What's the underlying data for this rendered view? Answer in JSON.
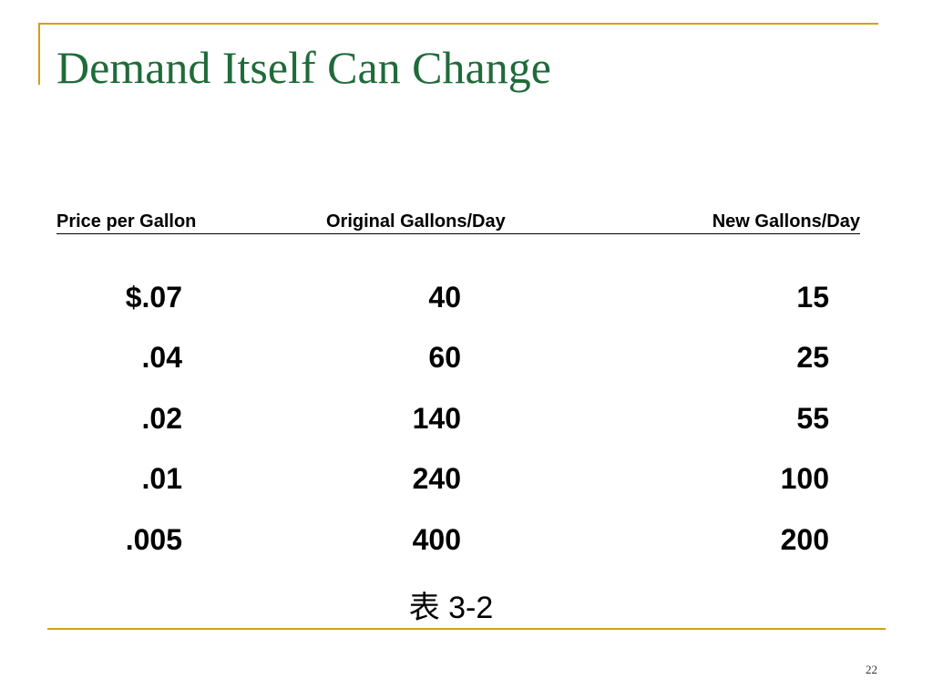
{
  "slide": {
    "title": "Demand Itself Can Change",
    "page_number": "22",
    "caption": "表 3-2"
  },
  "table": {
    "headers": {
      "price": "Price per Gallon",
      "original": "Original Gallons/Day",
      "new": "New Gallons/Day"
    },
    "rows": [
      {
        "price": "$.07",
        "original": "40",
        "new": "15"
      },
      {
        "price": ".04",
        "original": "60",
        "new": "25"
      },
      {
        "price": ".02",
        "original": "140",
        "new": "55"
      },
      {
        "price": ".01",
        "original": "240",
        "new": "100"
      },
      {
        "price": ".005",
        "original": "400",
        "new": "200"
      }
    ]
  },
  "colors": {
    "title": "#1f6b3a",
    "accent_rule": "#d4a017",
    "text": "#000000"
  }
}
